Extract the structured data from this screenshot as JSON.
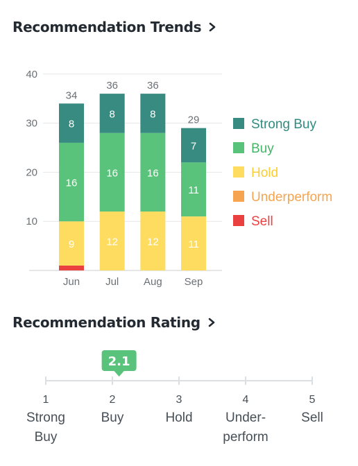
{
  "trends_section": {
    "title": "Recommendation Trends"
  },
  "rating_section": {
    "title": "Recommendation Rating"
  },
  "chart_data": [
    {
      "type": "bar",
      "stacked": true,
      "categories": [
        "Jun",
        "Jul",
        "Aug",
        "Sep"
      ],
      "totals": [
        34,
        36,
        36,
        29
      ],
      "ylim": [
        0,
        40
      ],
      "yticks": [
        10,
        20,
        30,
        40
      ],
      "grid": true,
      "legend_position": "right",
      "series": [
        {
          "name": "Sell",
          "values": [
            1,
            0,
            0,
            0
          ],
          "color": "#eb4040",
          "label_color": "#eb4040"
        },
        {
          "name": "Underperform",
          "values": [
            0,
            0,
            0,
            0
          ],
          "color": "#f6a450",
          "label_color": "#f6a450"
        },
        {
          "name": "Hold",
          "values": [
            9,
            12,
            12,
            11
          ],
          "color": "#fedc60",
          "label_color": "#fbcd34"
        },
        {
          "name": "Buy",
          "values": [
            16,
            16,
            16,
            11
          ],
          "color": "#5ac37b",
          "label_color": "#43b566"
        },
        {
          "name": "Strong Buy",
          "values": [
            8,
            8,
            8,
            7
          ],
          "color": "#378b80",
          "label_color": "#2f8b7f"
        }
      ]
    },
    {
      "type": "scale",
      "value": 2.1,
      "value_label": "2.1",
      "range": [
        1,
        5
      ],
      "marker_color": "#5ac37b",
      "ticks": [
        {
          "num": "1",
          "lines": [
            "Strong",
            "Buy"
          ]
        },
        {
          "num": "2",
          "lines": [
            "Buy"
          ]
        },
        {
          "num": "3",
          "lines": [
            "Hold"
          ]
        },
        {
          "num": "4",
          "lines": [
            "Under-",
            "perform"
          ]
        },
        {
          "num": "5",
          "lines": [
            "Sell"
          ]
        }
      ]
    }
  ]
}
